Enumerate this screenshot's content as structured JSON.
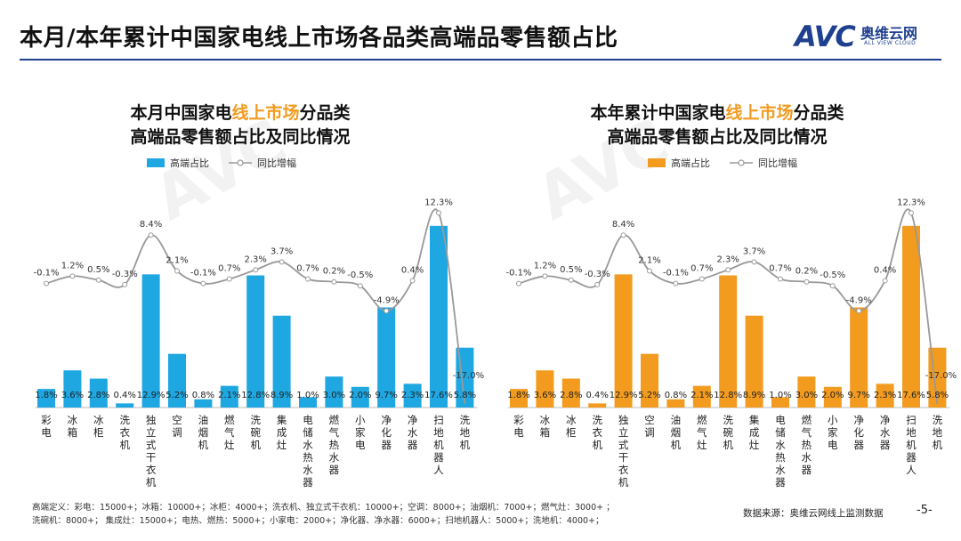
{
  "page_title": "本月/本年累计中国家电线上市场各品类高端品零售额占比",
  "logo": {
    "mark": "AVC",
    "cn": "奥维云网",
    "en": "ALL VIEW CLOUD"
  },
  "colors": {
    "blue": "#1ea7e1",
    "orange": "#f29b1f",
    "line": "#999999",
    "highlight": "#f29b1f",
    "navy": "#1f3f8f"
  },
  "chart_data": [
    {
      "type": "bar+line",
      "title_pre": "本月中国家电",
      "title_hl": "线上市场",
      "title_post": "分品类",
      "title_line2": "高端品零售额占比及同比情况",
      "bar_color": "#1ea7e1",
      "legend": [
        "高端占比",
        "同比增幅"
      ],
      "categories": [
        "彩电",
        "冰箱",
        "冰柜",
        "洗衣机",
        "独立式干衣机",
        "空调",
        "油烟机",
        "燃气灶",
        "洗碗机",
        "集成灶",
        "电储水热水器",
        "燃气热水器",
        "小家电",
        "净化器",
        "净水器",
        "扫地机器人",
        "洗地机"
      ],
      "bar_values": [
        1.8,
        3.6,
        2.8,
        0.4,
        12.9,
        5.2,
        0.8,
        2.1,
        12.8,
        8.9,
        1.0,
        3.0,
        2.0,
        9.7,
        2.3,
        17.6,
        5.8
      ],
      "bar_labels": [
        "1.8%",
        "3.6%",
        "2.8%",
        "0.4%",
        "12.9%",
        "5.2%",
        "0.8%",
        "2.1%",
        "12.8%",
        "8.9%",
        "1.0%",
        "3.0%",
        "2.0%",
        "9.7%",
        "2.3%",
        "17.6%",
        "5.8%"
      ],
      "line_values": [
        -0.1,
        1.2,
        0.5,
        -0.3,
        8.4,
        2.1,
        -0.1,
        0.7,
        2.3,
        3.7,
        0.7,
        0.2,
        -0.5,
        -4.9,
        0.4,
        12.3,
        -17.0
      ],
      "line_labels": [
        "-0.1%",
        "1.2%",
        "0.5%",
        "-0.3%",
        "8.4%",
        "2.1%",
        "-0.1%",
        "0.7%",
        "2.3%",
        "3.7%",
        "0.7%",
        "0.2%",
        "-0.5%",
        "-4.9%",
        "0.4%",
        "12.3%",
        "-17.0%"
      ]
    },
    {
      "type": "bar+line",
      "title_pre": "本年累计中国家电",
      "title_hl": "线上市场",
      "title_post": "分品类",
      "title_line2": "高端品零售额占比及同比情况",
      "bar_color": "#f29b1f",
      "legend": [
        "高端占比",
        "同比增幅"
      ],
      "categories": [
        "彩电",
        "冰箱",
        "冰柜",
        "洗衣机",
        "独立式干衣机",
        "空调",
        "油烟机",
        "燃气灶",
        "洗碗机",
        "集成灶",
        "电储水热水器",
        "燃气热水器",
        "小家电",
        "净化器",
        "净水器",
        "扫地机器人",
        "洗地机"
      ],
      "bar_values": [
        1.8,
        3.6,
        2.8,
        0.4,
        12.9,
        5.2,
        0.8,
        2.1,
        12.8,
        8.9,
        1.0,
        3.0,
        2.0,
        9.7,
        2.3,
        17.6,
        5.8
      ],
      "bar_labels": [
        "1.8%",
        "3.6%",
        "2.8%",
        "0.4%",
        "12.9%",
        "5.2%",
        "0.8%",
        "2.1%",
        "12.8%",
        "8.9%",
        "1.0%",
        "3.0%",
        "2.0%",
        "9.7%",
        "2.3%",
        "17.6%",
        "5.8%"
      ],
      "line_values": [
        -0.1,
        1.2,
        0.5,
        -0.3,
        8.4,
        2.1,
        -0.1,
        0.7,
        2.3,
        3.7,
        0.7,
        0.2,
        -0.5,
        -4.9,
        0.4,
        12.3,
        -17.0
      ],
      "line_labels": [
        "-0.1%",
        "1.2%",
        "0.5%",
        "-0.3%",
        "8.4%",
        "2.1%",
        "-0.1%",
        "0.7%",
        "2.3%",
        "3.7%",
        "0.7%",
        "0.2%",
        "-0.5%",
        "-4.9%",
        "0.4%",
        "12.3%",
        "-17.0%"
      ]
    }
  ],
  "footer": {
    "definition_line1": "高端定义：彩电：15000+；冰箱：10000+；冰柜：4000+；洗衣机、独立式干衣机：10000+；空调：8000+；油烟机：7000+；燃气灶：3000+ ；",
    "definition_line2": "洗碗机：8000+；  集成灶：15000+；电热、燃热：5000+；小家电：2000+；净化器、净水器：6000+；扫地机器人：5000+；洗地机：4000+；",
    "source": "数据来源：奥维云网线上监测数据",
    "page_number": "-5-"
  }
}
